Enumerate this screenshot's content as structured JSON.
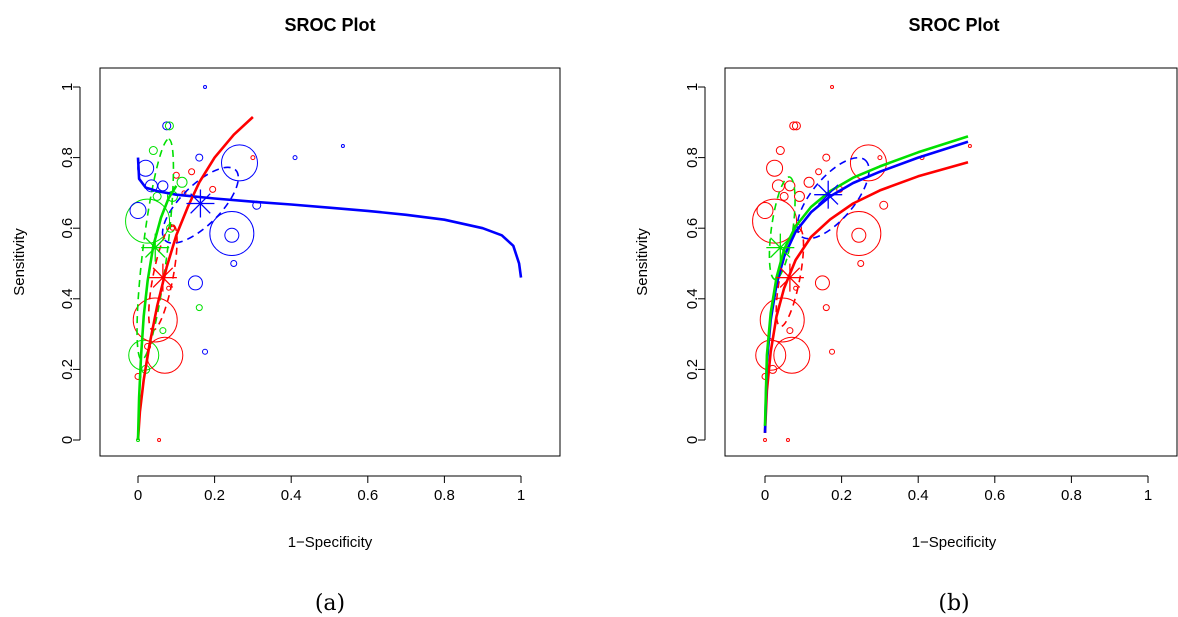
{
  "colors": {
    "red": "#ff0000",
    "green": "#00e000",
    "blue": "#0000ff"
  },
  "chart_data": [
    {
      "type": "scatter",
      "title": "SROC Plot",
      "xlabel": "1−Specificity",
      "ylabel": "Sensitivity",
      "caption": "(a)",
      "xlim": [
        0,
        1
      ],
      "ylim": [
        0,
        1
      ],
      "xticks": [
        {
          "v": 0,
          "l": "0"
        },
        {
          "v": 0.2,
          "l": "0.2"
        },
        {
          "v": 0.4,
          "l": "0.4"
        },
        {
          "v": 0.6,
          "l": "0.6"
        },
        {
          "v": 0.8,
          "l": "0.8"
        },
        {
          "v": 1,
          "l": "1"
        }
      ],
      "yticks": [
        {
          "v": 0,
          "l": "0"
        },
        {
          "v": 0.2,
          "l": "0.2"
        },
        {
          "v": 0.4,
          "l": "0.4"
        },
        {
          "v": 0.6,
          "l": "0.6"
        },
        {
          "v": 0.8,
          "l": "0.8"
        },
        {
          "v": 1,
          "l": "1"
        }
      ],
      "grid": false,
      "studies": [
        {
          "x": 0.025,
          "y": 0.62,
          "r": 22,
          "c": "green"
        },
        {
          "x": 0.015,
          "y": 0.24,
          "r": 15,
          "c": "green"
        },
        {
          "x": 0.045,
          "y": 0.34,
          "r": 22,
          "c": "red"
        },
        {
          "x": 0.07,
          "y": 0.24,
          "r": 18,
          "c": "red"
        },
        {
          "x": 0.265,
          "y": 0.785,
          "r": 18,
          "c": "blue"
        },
        {
          "x": 0.245,
          "y": 0.585,
          "r": 22,
          "c": "blue"
        },
        {
          "x": 0.245,
          "y": 0.58,
          "r": 7,
          "c": "blue"
        },
        {
          "x": 0.02,
          "y": 0.77,
          "r": 8,
          "c": "blue"
        },
        {
          "x": 0.0,
          "y": 0.65,
          "r": 8,
          "c": "blue"
        },
        {
          "x": 0.15,
          "y": 0.445,
          "r": 7,
          "c": "blue"
        },
        {
          "x": 0.075,
          "y": 0.89,
          "r": 4,
          "c": "blue"
        },
        {
          "x": 0.082,
          "y": 0.89,
          "r": 4,
          "c": "green"
        },
        {
          "x": 0.175,
          "y": 1.0,
          "r": 1.5,
          "c": "blue"
        },
        {
          "x": 0.535,
          "y": 0.833,
          "r": 1.5,
          "c": "blue"
        },
        {
          "x": 0.41,
          "y": 0.8,
          "r": 2,
          "c": "blue"
        },
        {
          "x": 0.31,
          "y": 0.665,
          "r": 4,
          "c": "blue"
        },
        {
          "x": 0.16,
          "y": 0.8,
          "r": 3.5,
          "c": "blue"
        },
        {
          "x": 0.175,
          "y": 0.25,
          "r": 2.5,
          "c": "blue"
        },
        {
          "x": 0.25,
          "y": 0.5,
          "r": 3,
          "c": "blue"
        },
        {
          "x": 0.035,
          "y": 0.72,
          "r": 6,
          "c": "blue"
        },
        {
          "x": 0.065,
          "y": 0.72,
          "r": 5,
          "c": "blue"
        },
        {
          "x": 0.04,
          "y": 0.82,
          "r": 4,
          "c": "green"
        },
        {
          "x": 0.16,
          "y": 0.375,
          "r": 3,
          "c": "green"
        },
        {
          "x": 0.065,
          "y": 0.31,
          "r": 3,
          "c": "green"
        },
        {
          "x": 0.02,
          "y": 0.2,
          "r": 4,
          "c": "green"
        },
        {
          "x": 0.115,
          "y": 0.73,
          "r": 5,
          "c": "green"
        },
        {
          "x": 0.09,
          "y": 0.69,
          "r": 5,
          "c": "green"
        },
        {
          "x": 0.05,
          "y": 0.69,
          "r": 4,
          "c": "green"
        },
        {
          "x": 0.085,
          "y": 0.6,
          "r": 4,
          "c": "green"
        },
        {
          "x": 0.0,
          "y": 0.0,
          "r": 1.5,
          "c": "green"
        },
        {
          "x": 0.195,
          "y": 0.71,
          "r": 3,
          "c": "red"
        },
        {
          "x": 0.14,
          "y": 0.76,
          "r": 3,
          "c": "red"
        },
        {
          "x": 0.1,
          "y": 0.75,
          "r": 3,
          "c": "red"
        },
        {
          "x": 0.3,
          "y": 0.8,
          "r": 2,
          "c": "red"
        },
        {
          "x": 0.055,
          "y": 0.0,
          "r": 1.5,
          "c": "red"
        },
        {
          "x": 0.0,
          "y": 0.18,
          "r": 3,
          "c": "red"
        },
        {
          "x": 0.025,
          "y": 0.265,
          "r": 3,
          "c": "red"
        },
        {
          "x": 0.08,
          "y": 0.43,
          "r": 2,
          "c": "red"
        },
        {
          "x": 0.09,
          "y": 0.6,
          "r": 2,
          "c": "red"
        },
        {
          "x": 0.12,
          "y": 0.7,
          "r": 2,
          "c": "red"
        }
      ],
      "curves": [
        {
          "name": "",
          "c": "blue",
          "pts": [
            [
              0,
              0.8
            ],
            [
              0.003,
              0.74
            ],
            [
              0.02,
              0.715
            ],
            [
              0.05,
              0.705
            ],
            [
              0.1,
              0.695
            ],
            [
              0.2,
              0.684
            ],
            [
              0.3,
              0.675
            ],
            [
              0.4,
              0.667
            ],
            [
              0.5,
              0.658
            ],
            [
              0.6,
              0.649
            ],
            [
              0.7,
              0.638
            ],
            [
              0.8,
              0.624
            ],
            [
              0.9,
              0.6
            ],
            [
              0.95,
              0.58
            ],
            [
              0.98,
              0.55
            ],
            [
              0.995,
              0.5
            ],
            [
              1.0,
              0.46
            ]
          ]
        },
        {
          "name": "",
          "c": "red",
          "pts": [
            [
              0,
              0
            ],
            [
              0.005,
              0.08
            ],
            [
              0.015,
              0.17
            ],
            [
              0.03,
              0.27
            ],
            [
              0.05,
              0.38
            ],
            [
              0.075,
              0.49
            ],
            [
              0.1,
              0.58
            ],
            [
              0.13,
              0.66
            ],
            [
              0.16,
              0.73
            ],
            [
              0.2,
              0.8
            ],
            [
              0.25,
              0.865
            ],
            [
              0.3,
              0.915
            ]
          ]
        },
        {
          "name": "",
          "c": "green",
          "pts": [
            [
              0,
              0
            ],
            [
              0.003,
              0.12
            ],
            [
              0.008,
              0.24
            ],
            [
              0.015,
              0.35
            ],
            [
              0.025,
              0.45
            ],
            [
              0.04,
              0.55
            ],
            [
              0.06,
              0.63
            ],
            [
              0.08,
              0.685
            ],
            [
              0.1,
              0.72
            ]
          ]
        }
      ],
      "ellipses": [
        {
          "cx": 0.163,
          "cy": 0.665,
          "rx": 0.13,
          "ry": 0.052,
          "rot": -45,
          "c": "blue"
        },
        {
          "cx": 0.065,
          "cy": 0.46,
          "rx": 0.14,
          "ry": 0.026,
          "rot": -79,
          "c": "red"
        },
        {
          "cx": 0.045,
          "cy": 0.54,
          "rx": 0.29,
          "ry": 0.032,
          "rot": -83,
          "c": "green"
        }
      ],
      "summary": [
        {
          "x": 0.163,
          "y": 0.67,
          "c": "blue",
          "s": 14
        },
        {
          "x": 0.065,
          "y": 0.46,
          "c": "red",
          "s": 14
        },
        {
          "x": 0.045,
          "y": 0.545,
          "c": "green",
          "s": 14
        }
      ]
    },
    {
      "type": "scatter",
      "title": "SROC Plot",
      "xlabel": "1−Specificity",
      "ylabel": "Sensitivity",
      "caption": "(b)",
      "xlim": [
        0,
        1
      ],
      "ylim": [
        0,
        1
      ],
      "xticks": [
        {
          "v": 0,
          "l": "0"
        },
        {
          "v": 0.2,
          "l": "0.2"
        },
        {
          "v": 0.4,
          "l": "0.4"
        },
        {
          "v": 0.6,
          "l": "0.6"
        },
        {
          "v": 0.8,
          "l": "0.8"
        },
        {
          "v": 1,
          "l": "1"
        }
      ],
      "yticks": [
        {
          "v": 0,
          "l": "0"
        },
        {
          "v": 0.2,
          "l": "0.2"
        },
        {
          "v": 0.4,
          "l": "0.4"
        },
        {
          "v": 0.6,
          "l": "0.6"
        },
        {
          "v": 0.8,
          "l": "0.8"
        },
        {
          "v": 1,
          "l": "1"
        }
      ],
      "grid": false,
      "studies": [
        {
          "x": 0.025,
          "y": 0.62,
          "r": 22,
          "c": "red"
        },
        {
          "x": 0.015,
          "y": 0.24,
          "r": 15,
          "c": "red"
        },
        {
          "x": 0.045,
          "y": 0.34,
          "r": 22,
          "c": "red"
        },
        {
          "x": 0.07,
          "y": 0.24,
          "r": 18,
          "c": "red"
        },
        {
          "x": 0.27,
          "y": 0.785,
          "r": 18,
          "c": "red"
        },
        {
          "x": 0.245,
          "y": 0.585,
          "r": 22,
          "c": "red"
        },
        {
          "x": 0.245,
          "y": 0.58,
          "r": 7,
          "c": "red"
        },
        {
          "x": 0.025,
          "y": 0.77,
          "r": 8,
          "c": "red"
        },
        {
          "x": 0.0,
          "y": 0.65,
          "r": 8,
          "c": "red"
        },
        {
          "x": 0.15,
          "y": 0.445,
          "r": 7,
          "c": "red"
        },
        {
          "x": 0.075,
          "y": 0.89,
          "r": 4,
          "c": "red"
        },
        {
          "x": 0.082,
          "y": 0.89,
          "r": 4,
          "c": "red"
        },
        {
          "x": 0.175,
          "y": 1.0,
          "r": 1.5,
          "c": "red"
        },
        {
          "x": 0.535,
          "y": 0.833,
          "r": 1.5,
          "c": "red"
        },
        {
          "x": 0.41,
          "y": 0.8,
          "r": 2,
          "c": "red"
        },
        {
          "x": 0.31,
          "y": 0.665,
          "r": 4,
          "c": "red"
        },
        {
          "x": 0.16,
          "y": 0.8,
          "r": 3.5,
          "c": "red"
        },
        {
          "x": 0.175,
          "y": 0.25,
          "r": 2.5,
          "c": "red"
        },
        {
          "x": 0.25,
          "y": 0.5,
          "r": 3,
          "c": "red"
        },
        {
          "x": 0.035,
          "y": 0.72,
          "r": 6,
          "c": "red"
        },
        {
          "x": 0.065,
          "y": 0.72,
          "r": 5,
          "c": "red"
        },
        {
          "x": 0.04,
          "y": 0.82,
          "r": 4,
          "c": "red"
        },
        {
          "x": 0.16,
          "y": 0.375,
          "r": 3,
          "c": "red"
        },
        {
          "x": 0.065,
          "y": 0.31,
          "r": 3,
          "c": "red"
        },
        {
          "x": 0.02,
          "y": 0.2,
          "r": 4,
          "c": "red"
        },
        {
          "x": 0.115,
          "y": 0.73,
          "r": 5,
          "c": "red"
        },
        {
          "x": 0.09,
          "y": 0.69,
          "r": 5,
          "c": "red"
        },
        {
          "x": 0.05,
          "y": 0.69,
          "r": 4,
          "c": "red"
        },
        {
          "x": 0.085,
          "y": 0.6,
          "r": 4,
          "c": "red"
        },
        {
          "x": 0.0,
          "y": 0.0,
          "r": 1.5,
          "c": "red"
        },
        {
          "x": 0.06,
          "y": 0.0,
          "r": 1.5,
          "c": "red"
        },
        {
          "x": 0.0,
          "y": 0.18,
          "r": 3,
          "c": "red"
        },
        {
          "x": 0.195,
          "y": 0.71,
          "r": 3,
          "c": "red"
        },
        {
          "x": 0.14,
          "y": 0.76,
          "r": 3,
          "c": "red"
        },
        {
          "x": 0.3,
          "y": 0.8,
          "r": 2,
          "c": "red"
        },
        {
          "x": 0.08,
          "y": 0.43,
          "r": 2,
          "c": "red"
        }
      ],
      "curves": [
        {
          "name": "",
          "c": "red",
          "pts": [
            [
              0,
              0.02
            ],
            [
              0.005,
              0.14
            ],
            [
              0.015,
              0.25
            ],
            [
              0.03,
              0.35
            ],
            [
              0.05,
              0.43
            ],
            [
              0.08,
              0.51
            ],
            [
              0.12,
              0.575
            ],
            [
              0.17,
              0.625
            ],
            [
              0.23,
              0.67
            ],
            [
              0.3,
              0.707
            ],
            [
              0.4,
              0.747
            ],
            [
              0.53,
              0.787
            ]
          ]
        },
        {
          "name": "",
          "c": "blue",
          "pts": [
            [
              0,
              0.02
            ],
            [
              0.005,
              0.22
            ],
            [
              0.015,
              0.34
            ],
            [
              0.03,
              0.44
            ],
            [
              0.05,
              0.52
            ],
            [
              0.08,
              0.59
            ],
            [
              0.12,
              0.645
            ],
            [
              0.17,
              0.69
            ],
            [
              0.23,
              0.728
            ],
            [
              0.3,
              0.76
            ],
            [
              0.4,
              0.8
            ],
            [
              0.53,
              0.845
            ]
          ]
        },
        {
          "name": "",
          "c": "green",
          "pts": [
            [
              0,
              0.04
            ],
            [
              0.005,
              0.24
            ],
            [
              0.015,
              0.36
            ],
            [
              0.03,
              0.46
            ],
            [
              0.05,
              0.54
            ],
            [
              0.08,
              0.605
            ],
            [
              0.12,
              0.66
            ],
            [
              0.17,
              0.705
            ],
            [
              0.23,
              0.743
            ],
            [
              0.3,
              0.775
            ],
            [
              0.4,
              0.815
            ],
            [
              0.53,
              0.86
            ]
          ]
        }
      ],
      "ellipses": [
        {
          "cx": 0.178,
          "cy": 0.685,
          "rx": 0.13,
          "ry": 0.055,
          "rot": -50,
          "c": "blue"
        },
        {
          "cx": 0.065,
          "cy": 0.46,
          "rx": 0.13,
          "ry": 0.026,
          "rot": -79,
          "c": "red"
        },
        {
          "cx": 0.045,
          "cy": 0.6,
          "rx": 0.135,
          "ry": 0.028,
          "rot": -82,
          "c": "green"
        }
      ],
      "summary": [
        {
          "x": 0.165,
          "y": 0.695,
          "c": "blue",
          "s": 14
        },
        {
          "x": 0.065,
          "y": 0.46,
          "c": "red",
          "s": 14
        },
        {
          "x": 0.04,
          "y": 0.545,
          "c": "green",
          "s": 14
        }
      ]
    }
  ]
}
